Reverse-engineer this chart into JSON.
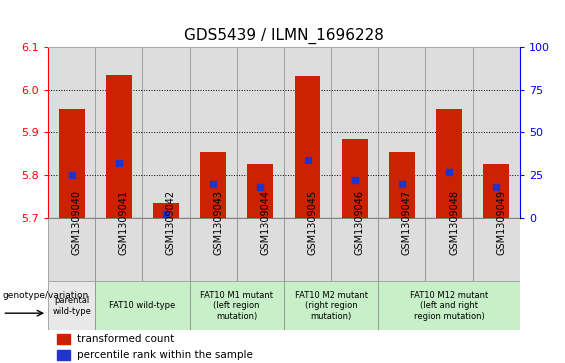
{
  "title": "GDS5439 / ILMN_1696228",
  "samples": [
    "GSM1309040",
    "GSM1309041",
    "GSM1309042",
    "GSM1309043",
    "GSM1309044",
    "GSM1309045",
    "GSM1309046",
    "GSM1309047",
    "GSM1309048",
    "GSM1309049"
  ],
  "transformed_counts": [
    5.955,
    6.035,
    5.735,
    5.855,
    5.825,
    6.032,
    5.885,
    5.855,
    5.955,
    5.825
  ],
  "percentile_ranks": [
    25,
    32,
    2,
    20,
    18,
    34,
    22,
    20,
    27,
    18
  ],
  "ylim_left": [
    5.7,
    6.1
  ],
  "ylim_right": [
    0,
    100
  ],
  "yticks_left": [
    5.7,
    5.8,
    5.9,
    6.0,
    6.1
  ],
  "yticks_right": [
    0,
    25,
    50,
    75,
    100
  ],
  "bar_color": "#cc2200",
  "dot_color": "#2233cc",
  "background_color": "#ffffff",
  "col_bg_color": "#dddddd",
  "group_spans": [
    {
      "start": 0,
      "end": 1,
      "label": "parental\nwild-type",
      "color": "#e8e8e8"
    },
    {
      "start": 1,
      "end": 3,
      "label": "FAT10 wild-type",
      "color": "#c8f0c8"
    },
    {
      "start": 3,
      "end": 5,
      "label": "FAT10 M1 mutant\n(left region\nmutation)",
      "color": "#c8f0c8"
    },
    {
      "start": 5,
      "end": 7,
      "label": "FAT10 M2 mutant\n(right region\nmutation)",
      "color": "#c8f0c8"
    },
    {
      "start": 7,
      "end": 10,
      "label": "FAT10 M12 mutant\n(left and right\nregion mutation)",
      "color": "#c8f0c8"
    }
  ],
  "legend_labels": [
    "transformed count",
    "percentile rank within the sample"
  ],
  "legend_colors": [
    "#cc2200",
    "#2233cc"
  ],
  "title_fontsize": 11,
  "axis_label_fontsize": 8,
  "tick_fontsize": 7,
  "legend_fontsize": 7.5
}
